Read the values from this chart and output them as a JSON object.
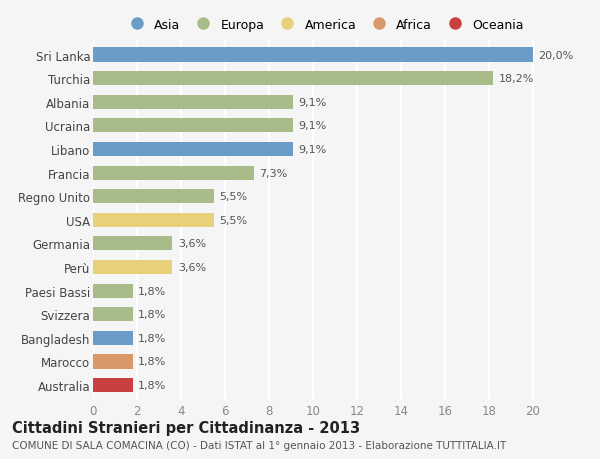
{
  "countries": [
    "Sri Lanka",
    "Turchia",
    "Albania",
    "Ucraina",
    "Libano",
    "Francia",
    "Regno Unito",
    "USA",
    "Germania",
    "Perù",
    "Paesi Bassi",
    "Svizzera",
    "Bangladesh",
    "Marocco",
    "Australia"
  ],
  "values": [
    20.0,
    18.2,
    9.1,
    9.1,
    9.1,
    7.3,
    5.5,
    5.5,
    3.6,
    3.6,
    1.8,
    1.8,
    1.8,
    1.8,
    1.8
  ],
  "labels": [
    "20,0%",
    "18,2%",
    "9,1%",
    "9,1%",
    "9,1%",
    "7,3%",
    "5,5%",
    "5,5%",
    "3,6%",
    "3,6%",
    "1,8%",
    "1,8%",
    "1,8%",
    "1,8%",
    "1,8%"
  ],
  "continents": [
    "Asia",
    "Europa",
    "Europa",
    "Europa",
    "Asia",
    "Europa",
    "Europa",
    "America",
    "Europa",
    "America",
    "Europa",
    "Europa",
    "Asia",
    "Africa",
    "Oceania"
  ],
  "continent_colors": {
    "Asia": "#6b9bc7",
    "Europa": "#a8bc8a",
    "America": "#e8d07a",
    "Africa": "#d9986a",
    "Oceania": "#c94040"
  },
  "legend_order": [
    "Asia",
    "Europa",
    "America",
    "Africa",
    "Oceania"
  ],
  "xlim": [
    0,
    21
  ],
  "xticks": [
    0,
    2,
    4,
    6,
    8,
    10,
    12,
    14,
    16,
    18,
    20
  ],
  "title": "Cittadini Stranieri per Cittadinanza - 2013",
  "subtitle": "COMUNE DI SALA COMACINA (CO) - Dati ISTAT al 1° gennaio 2013 - Elaborazione TUTTITALIA.IT",
  "bg_color": "#f5f5f5",
  "grid_color": "#ffffff",
  "bar_height": 0.6,
  "label_fontsize": 8,
  "ytick_fontsize": 8.5,
  "xtick_fontsize": 8.5,
  "title_fontsize": 10.5,
  "subtitle_fontsize": 7.5,
  "legend_fontsize": 9
}
